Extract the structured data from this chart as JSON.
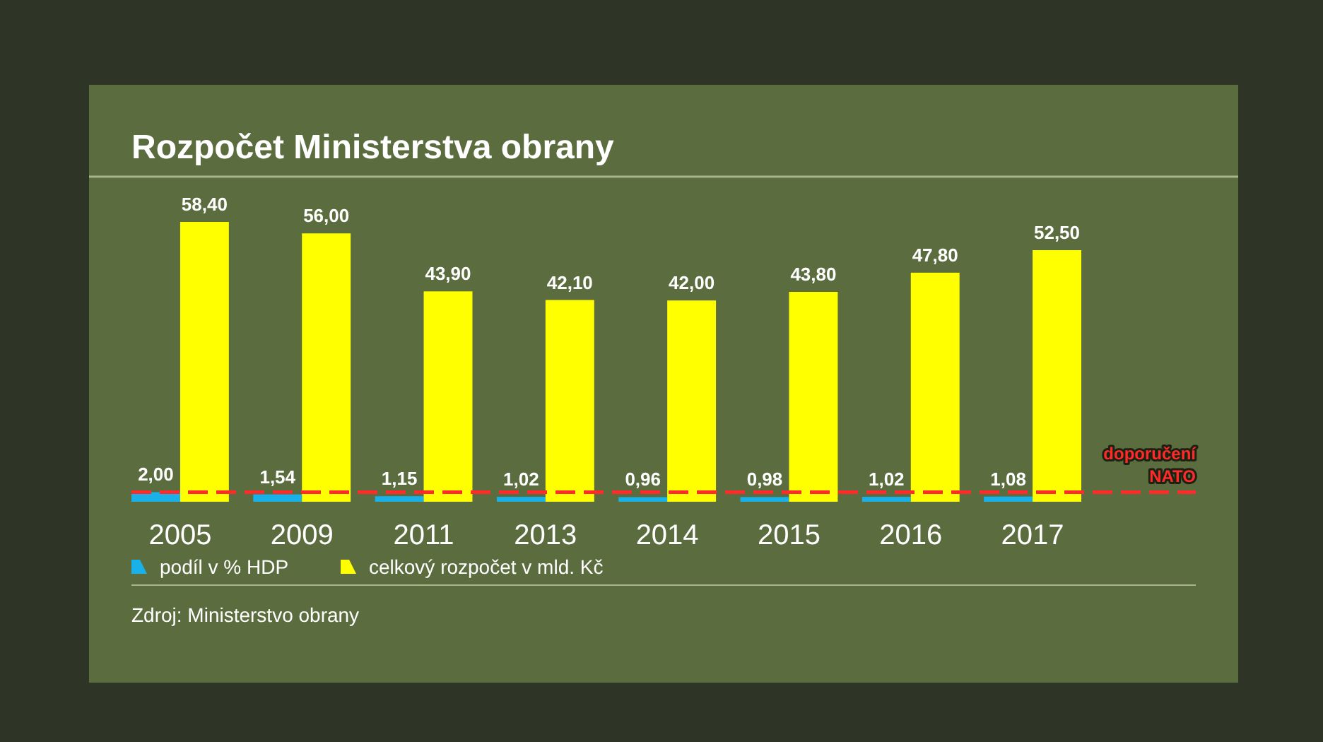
{
  "chart_data": {
    "type": "bar",
    "title": "Rozpočet Ministerstva obrany",
    "categories": [
      "2005",
      "2009",
      "2011",
      "2013",
      "2014",
      "2015",
      "2016",
      "2017"
    ],
    "series": [
      {
        "name": "podíl v % HDP",
        "color": "#1ab0e8",
        "values": [
          2.0,
          1.54,
          1.15,
          1.02,
          0.96,
          0.98,
          1.02,
          1.08
        ],
        "value_labels": [
          "2,00",
          "1,54",
          "1,15",
          "1,02",
          "0,96",
          "0,98",
          "1,02",
          "1,08"
        ]
      },
      {
        "name": "celkový rozpočet v mld. Kč",
        "color": "#ffff00",
        "values": [
          58.4,
          56.0,
          43.9,
          42.1,
          42.0,
          43.8,
          47.8,
          52.5
        ],
        "value_labels": [
          "58,40",
          "56,00",
          "43,90",
          "42,10",
          "42,00",
          "43,80",
          "47,80",
          "52,50"
        ]
      }
    ],
    "ref_lines": [
      {
        "axis": "y",
        "value": 2,
        "label": "doporučení NATO",
        "color": "#ff2a2a",
        "line_style": "dashed"
      }
    ],
    "legend": "bottom",
    "annotations": [
      "Zdroj: Ministerstvo obrany"
    ]
  }
}
